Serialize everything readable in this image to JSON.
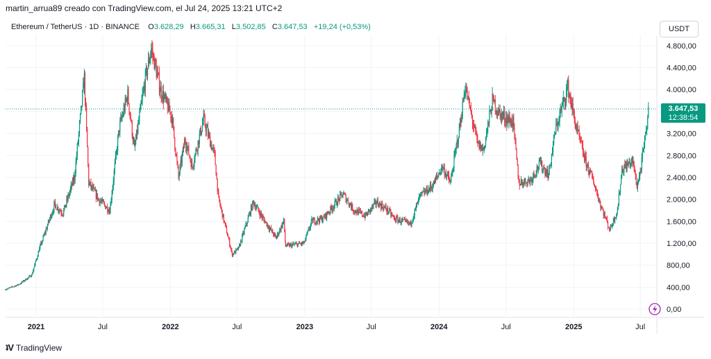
{
  "header": {
    "attribution": "martin_arrua89 creado con TradingView.com, el Jul 24, 2025 13:21 UTC+2"
  },
  "symbol": {
    "title": "Ethereum / TetherUS · 1D · BINANCE",
    "o_label": "O",
    "o_value": "3.628,29",
    "h_label": "H",
    "h_value": "3.665,31",
    "l_label": "L",
    "l_value": "3.502,85",
    "c_label": "C",
    "c_value": "3.647,53",
    "change": "+19,24 (+0,53%)"
  },
  "currency": "USDT",
  "price_tag": {
    "price": "3.647,53",
    "countdown": "12:38:54",
    "color": "#089981"
  },
  "footer": {
    "logo_text": "TradingView"
  },
  "colors": {
    "up": "#089981",
    "down": "#f23645",
    "grid": "#f0f3fa",
    "axis_text": "#131722"
  },
  "chart_data": {
    "type": "candlestick",
    "ylim": [
      0,
      5000
    ],
    "y_ticks": [
      {
        "value": 0,
        "label": "0,00"
      },
      {
        "value": 400,
        "label": "400,00"
      },
      {
        "value": 800,
        "label": "800,00"
      },
      {
        "value": 1200,
        "label": "1.200,00"
      },
      {
        "value": 1600,
        "label": "1.600,00"
      },
      {
        "value": 2000,
        "label": "2.000,00"
      },
      {
        "value": 2400,
        "label": "2.400,00"
      },
      {
        "value": 2800,
        "label": "2.800,00"
      },
      {
        "value": 3200,
        "label": "3.200,00"
      },
      {
        "value": 3600,
        "label": "3.600,00"
      },
      {
        "value": 4000,
        "label": "4.000,00"
      },
      {
        "value": 4400,
        "label": "4.400,00"
      },
      {
        "value": 4800,
        "label": "4.800,00"
      }
    ],
    "x_range": [
      "2020-10-10",
      "2025-08-15"
    ],
    "x_ticks": [
      {
        "date": "2021-01-01",
        "label": "2021",
        "bold": true
      },
      {
        "date": "2021-07-01",
        "label": "Jul",
        "bold": false
      },
      {
        "date": "2022-01-01",
        "label": "2022",
        "bold": true
      },
      {
        "date": "2022-07-01",
        "label": "Jul",
        "bold": false
      },
      {
        "date": "2023-01-01",
        "label": "2023",
        "bold": true
      },
      {
        "date": "2023-07-01",
        "label": "Jul",
        "bold": false
      },
      {
        "date": "2024-01-01",
        "label": "2024",
        "bold": true
      },
      {
        "date": "2024-07-01",
        "label": "Jul",
        "bold": false
      },
      {
        "date": "2025-01-01",
        "label": "2025",
        "bold": true
      },
      {
        "date": "2025-07-01",
        "label": "Jul",
        "bold": false
      }
    ],
    "last_price": 3647.53,
    "price_path": [
      [
        "2020-10-10",
        360
      ],
      [
        "2020-11-15",
        450
      ],
      [
        "2020-12-20",
        620
      ],
      [
        "2021-01-10",
        1100
      ],
      [
        "2021-02-20",
        1900
      ],
      [
        "2021-03-15",
        1750
      ],
      [
        "2021-04-15",
        2400
      ],
      [
        "2021-05-12",
        4200
      ],
      [
        "2021-05-24",
        2300
      ],
      [
        "2021-06-20",
        2000
      ],
      [
        "2021-07-20",
        1800
      ],
      [
        "2021-08-15",
        3300
      ],
      [
        "2021-09-07",
        3900
      ],
      [
        "2021-09-25",
        2900
      ],
      [
        "2021-10-25",
        4200
      ],
      [
        "2021-11-10",
        4750
      ],
      [
        "2021-12-05",
        4000
      ],
      [
        "2022-01-05",
        3500
      ],
      [
        "2022-01-23",
        2400
      ],
      [
        "2022-02-10",
        3100
      ],
      [
        "2022-03-01",
        2600
      ],
      [
        "2022-04-01",
        3450
      ],
      [
        "2022-05-01",
        2800
      ],
      [
        "2022-05-12",
        2000
      ],
      [
        "2022-06-18",
        1000
      ],
      [
        "2022-07-05",
        1100
      ],
      [
        "2022-08-14",
        1950
      ],
      [
        "2022-09-10",
        1650
      ],
      [
        "2022-10-15",
        1300
      ],
      [
        "2022-11-05",
        1600
      ],
      [
        "2022-11-10",
        1150
      ],
      [
        "2022-12-30",
        1200
      ],
      [
        "2023-01-20",
        1600
      ],
      [
        "2023-02-20",
        1650
      ],
      [
        "2023-04-15",
        2100
      ],
      [
        "2023-05-15",
        1800
      ],
      [
        "2023-06-15",
        1700
      ],
      [
        "2023-07-15",
        1950
      ],
      [
        "2023-08-15",
        1800
      ],
      [
        "2023-09-01",
        1650
      ],
      [
        "2023-10-15",
        1550
      ],
      [
        "2023-11-10",
        2050
      ],
      [
        "2023-12-15",
        2250
      ],
      [
        "2024-01-10",
        2600
      ],
      [
        "2024-02-01",
        2300
      ],
      [
        "2024-02-28",
        3400
      ],
      [
        "2024-03-12",
        4050
      ],
      [
        "2024-04-15",
        3000
      ],
      [
        "2024-05-01",
        2900
      ],
      [
        "2024-05-25",
        3800
      ],
      [
        "2024-06-15",
        3550
      ],
      [
        "2024-07-20",
        3400
      ],
      [
        "2024-08-05",
        2300
      ],
      [
        "2024-09-05",
        2350
      ],
      [
        "2024-10-01",
        2650
      ],
      [
        "2024-10-25",
        2450
      ],
      [
        "2024-11-12",
        3250
      ],
      [
        "2024-12-16",
        4050
      ],
      [
        "2025-01-08",
        3300
      ],
      [
        "2025-02-02",
        2700
      ],
      [
        "2025-02-25",
        2300
      ],
      [
        "2025-03-15",
        1900
      ],
      [
        "2025-04-09",
        1450
      ],
      [
        "2025-04-30",
        1800
      ],
      [
        "2025-05-12",
        2550
      ],
      [
        "2025-06-10",
        2700
      ],
      [
        "2025-06-22",
        2250
      ],
      [
        "2025-07-01",
        2500
      ],
      [
        "2025-07-15",
        3150
      ],
      [
        "2025-07-24",
        3647
      ]
    ]
  }
}
